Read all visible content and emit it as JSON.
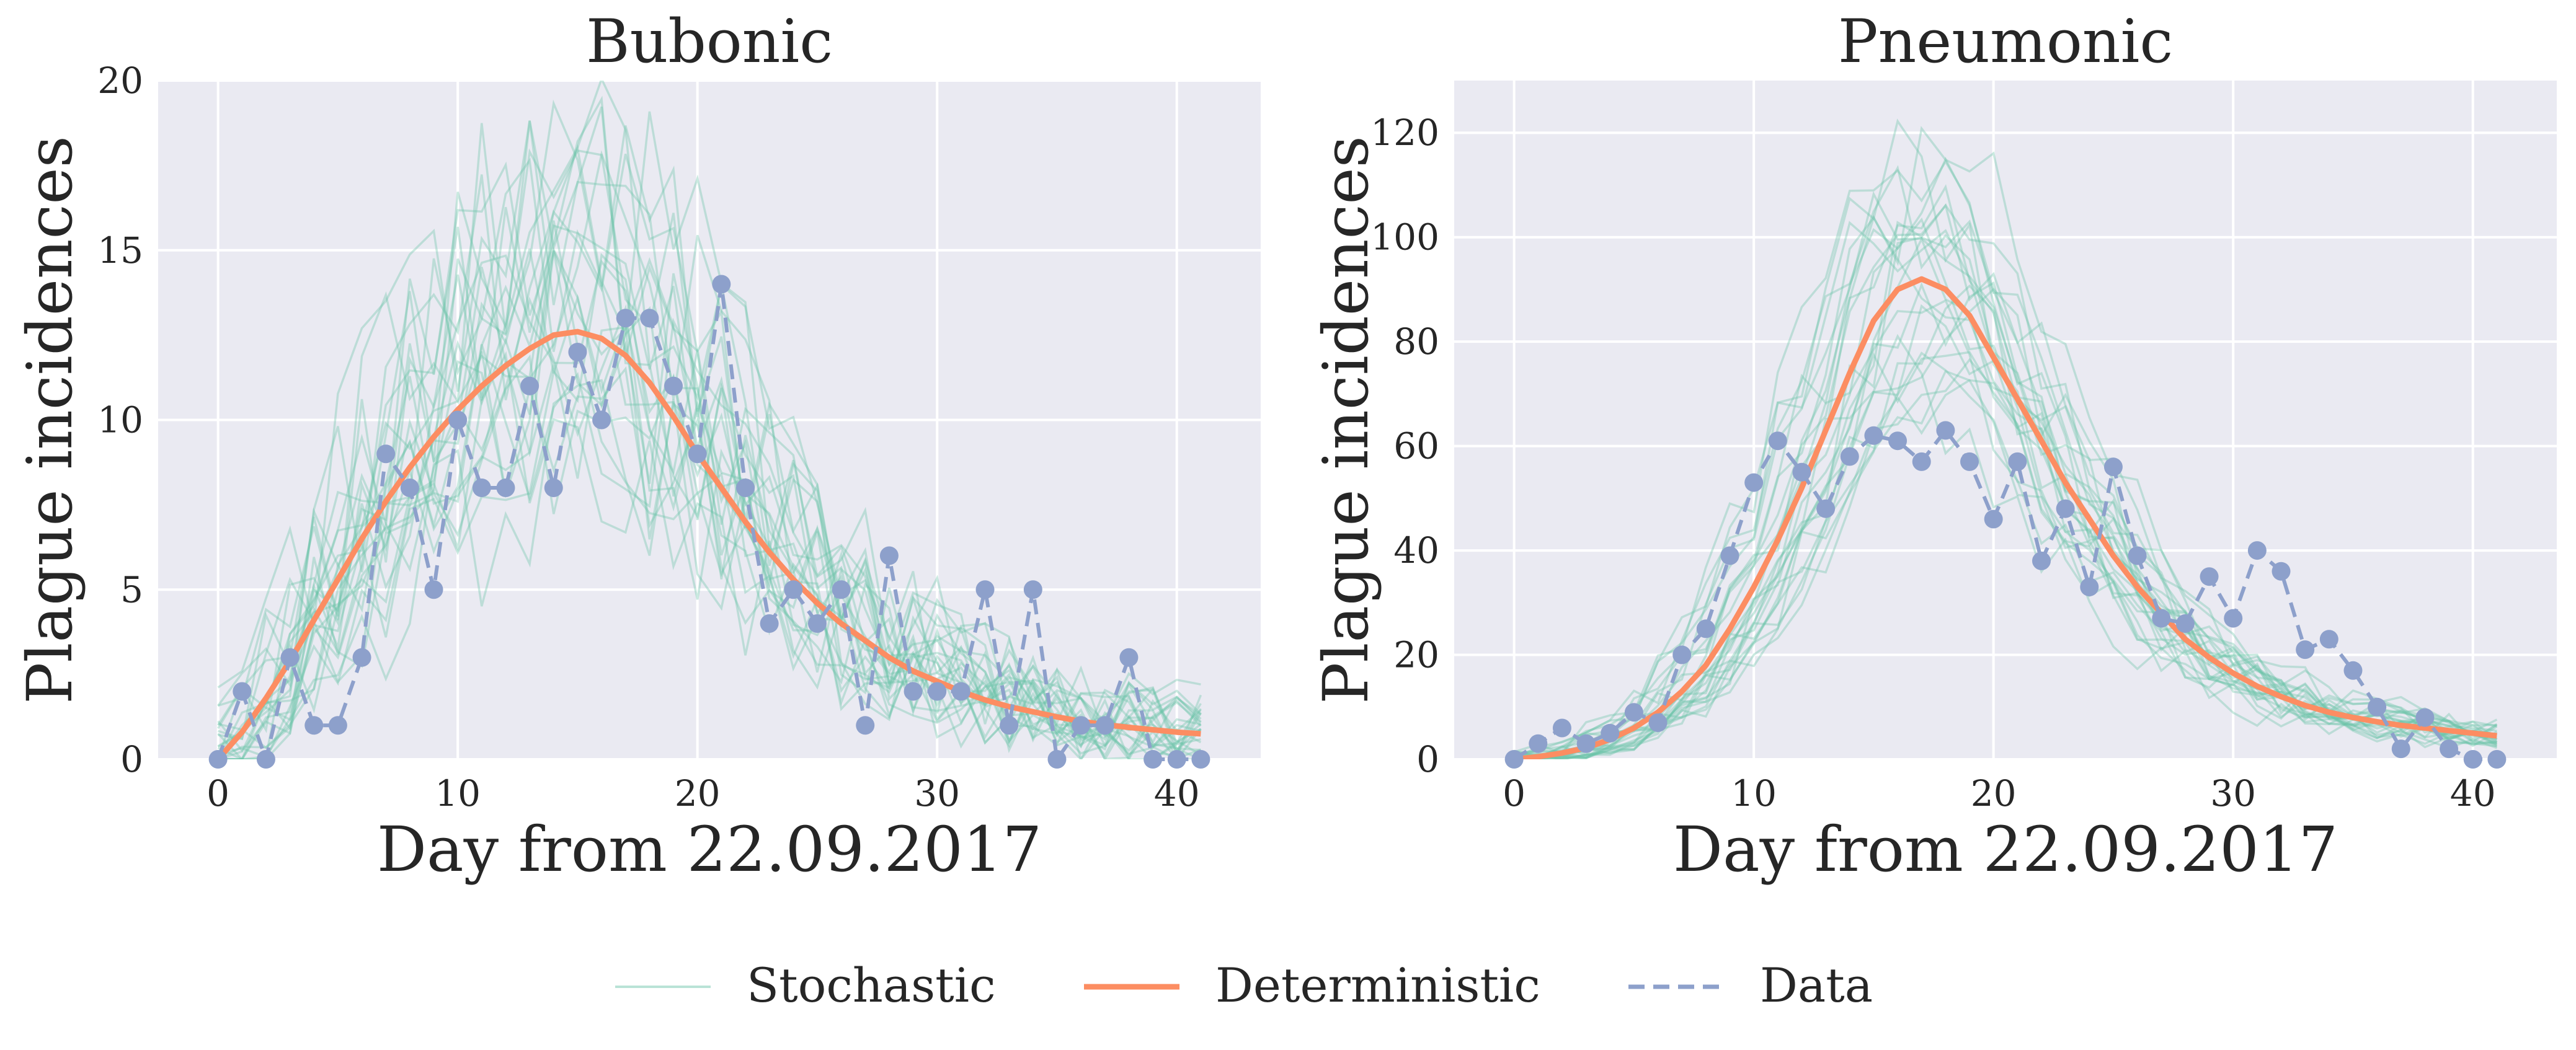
{
  "colors": {
    "stochastic": "#66c2a5",
    "deterministic": "#fc8d62",
    "data": "#8da0cb",
    "plot_background": "#eaeaf2",
    "grid": "#ffffff"
  },
  "legend": {
    "placement": "bottom-center",
    "stochastic_label": "Stochastic",
    "deterministic_label": "Deterministic",
    "data_label": "Data"
  },
  "chart_data": [
    {
      "type": "line",
      "title": "Bubonic",
      "xlabel": "Day from 22.09.2017",
      "ylabel": "Plague incidences",
      "xlim": [
        -2.5,
        43.5
      ],
      "ylim": [
        0,
        20
      ],
      "xticks": [
        0,
        10,
        20,
        30,
        40
      ],
      "yticks": [
        0,
        5,
        10,
        15,
        20
      ],
      "grid": true,
      "x": [
        0,
        1,
        2,
        3,
        4,
        5,
        6,
        7,
        8,
        9,
        10,
        11,
        12,
        13,
        14,
        15,
        16,
        17,
        18,
        19,
        20,
        21,
        22,
        23,
        24,
        25,
        26,
        27,
        28,
        29,
        30,
        31,
        32,
        33,
        34,
        35,
        36,
        37,
        38,
        39,
        40,
        41
      ],
      "series": [
        {
          "name": "Data",
          "style": "dashed-markers",
          "values": [
            0,
            2,
            0,
            3,
            1,
            1,
            3,
            9,
            8,
            5,
            10,
            8,
            8,
            11,
            8,
            12,
            10,
            13,
            13,
            11,
            9,
            14,
            8,
            4,
            5,
            4,
            5,
            1,
            6,
            2,
            2,
            2,
            5,
            1,
            5,
            0,
            1,
            1,
            3,
            0,
            0,
            0
          ]
        },
        {
          "name": "Deterministic",
          "style": "solid",
          "values": [
            0,
            0.8,
            1.8,
            2.9,
            4.1,
            5.3,
            6.5,
            7.6,
            8.6,
            9.5,
            10.3,
            11.0,
            11.6,
            12.1,
            12.5,
            12.6,
            12.4,
            11.9,
            11.1,
            10.1,
            9.0,
            8.0,
            7.0,
            6.1,
            5.3,
            4.6,
            4.0,
            3.5,
            3.0,
            2.6,
            2.3,
            2.0,
            1.75,
            1.55,
            1.4,
            1.25,
            1.12,
            1.02,
            0.94,
            0.87,
            0.8,
            0.75
          ]
        },
        {
          "name": "Stochastic",
          "style": "ensemble",
          "realizations": 25,
          "spread": 0.35
        }
      ]
    },
    {
      "type": "line",
      "title": "Pneumonic",
      "xlabel": "Day from 22.09.2017",
      "ylabel": "Plague incidences",
      "xlim": [
        -2.5,
        43.5
      ],
      "ylim": [
        0,
        130
      ],
      "xticks": [
        0,
        10,
        20,
        30,
        40
      ],
      "yticks": [
        0,
        20,
        40,
        60,
        80,
        100,
        120
      ],
      "grid": true,
      "x": [
        0,
        1,
        2,
        3,
        4,
        5,
        6,
        7,
        8,
        9,
        10,
        11,
        12,
        13,
        14,
        15,
        16,
        17,
        18,
        19,
        20,
        21,
        22,
        23,
        24,
        25,
        26,
        27,
        28,
        29,
        30,
        31,
        32,
        33,
        34,
        35,
        36,
        37,
        38,
        39,
        40,
        41
      ],
      "series": [
        {
          "name": "Data",
          "style": "dashed-markers",
          "values": [
            0,
            3,
            6,
            3,
            5,
            9,
            7,
            20,
            25,
            39,
            53,
            61,
            55,
            48,
            58,
            62,
            61,
            57,
            63,
            57,
            46,
            57,
            38,
            48,
            33,
            56,
            39,
            27,
            26,
            35,
            27,
            40,
            36,
            21,
            23,
            17,
            10,
            2,
            8,
            2,
            0,
            0
          ]
        },
        {
          "name": "Deterministic",
          "style": "solid",
          "values": [
            0,
            0.5,
            1.2,
            2.2,
            3.8,
            6,
            9,
            13,
            18,
            25,
            33,
            42,
            52,
            63,
            74,
            84,
            90,
            92,
            90,
            85,
            77,
            69,
            61,
            53,
            46,
            39,
            33,
            28,
            23,
            19.5,
            16.5,
            14,
            12,
            10.3,
            9,
            8,
            7.2,
            6.5,
            6,
            5.5,
            5,
            4.5
          ]
        },
        {
          "name": "Stochastic",
          "style": "ensemble",
          "realizations": 25,
          "spread": 0.28
        }
      ]
    }
  ]
}
